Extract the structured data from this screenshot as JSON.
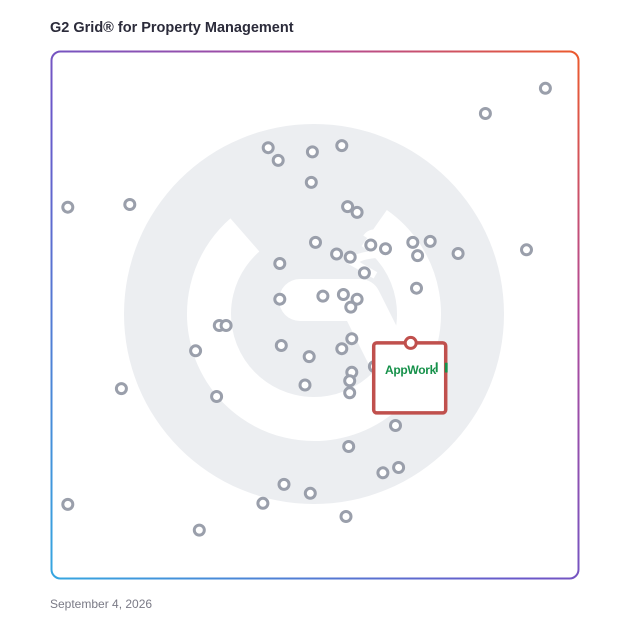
{
  "title": "G2 Grid® for Property Management",
  "date": "September 4, 2026",
  "colors": {
    "border_start": "#5b6bd6",
    "border_end": "#e8582e",
    "accent": "#c0504d",
    "dot": "#9a9fab",
    "logo": "#16914a"
  },
  "highlight_label": "AppWork",
  "chart_data": {
    "type": "scatter",
    "xlim": [
      0,
      100
    ],
    "ylim": [
      0,
      100
    ],
    "grid": "quadrants",
    "points": [
      {
        "x": 93.8,
        "y": 93.1
      },
      {
        "x": 82.4,
        "y": 88.3
      },
      {
        "x": 41.1,
        "y": 81.8
      },
      {
        "x": 55.1,
        "y": 82.2
      },
      {
        "x": 49.5,
        "y": 81.0
      },
      {
        "x": 43.0,
        "y": 79.4
      },
      {
        "x": 49.3,
        "y": 75.2
      },
      {
        "x": 3.0,
        "y": 70.5
      },
      {
        "x": 14.8,
        "y": 71.0
      },
      {
        "x": 56.2,
        "y": 70.6
      },
      {
        "x": 58.0,
        "y": 69.5
      },
      {
        "x": 50.1,
        "y": 63.8
      },
      {
        "x": 54.1,
        "y": 61.6
      },
      {
        "x": 56.7,
        "y": 61.0
      },
      {
        "x": 60.6,
        "y": 63.3
      },
      {
        "x": 63.4,
        "y": 62.6
      },
      {
        "x": 68.6,
        "y": 63.8
      },
      {
        "x": 71.9,
        "y": 64.0
      },
      {
        "x": 69.5,
        "y": 61.3
      },
      {
        "x": 77.2,
        "y": 61.7
      },
      {
        "x": 90.2,
        "y": 62.4
      },
      {
        "x": 43.3,
        "y": 59.8
      },
      {
        "x": 59.4,
        "y": 58.0
      },
      {
        "x": 69.3,
        "y": 55.1
      },
      {
        "x": 43.3,
        "y": 53.0
      },
      {
        "x": 51.5,
        "y": 53.6
      },
      {
        "x": 55.4,
        "y": 53.9
      },
      {
        "x": 58.0,
        "y": 53.0
      },
      {
        "x": 56.8,
        "y": 51.5
      },
      {
        "x": 31.8,
        "y": 48.0
      },
      {
        "x": 33.1,
        "y": 48.0
      },
      {
        "x": 43.6,
        "y": 44.2
      },
      {
        "x": 57.0,
        "y": 45.5
      },
      {
        "x": 55.1,
        "y": 43.6
      },
      {
        "x": 27.3,
        "y": 43.2
      },
      {
        "x": 48.9,
        "y": 42.1
      },
      {
        "x": 61.3,
        "y": 40.2
      },
      {
        "x": 57.0,
        "y": 39.1
      },
      {
        "x": 56.6,
        "y": 37.5
      },
      {
        "x": 13.2,
        "y": 36.0
      },
      {
        "x": 48.1,
        "y": 36.7
      },
      {
        "x": 31.3,
        "y": 34.5
      },
      {
        "x": 56.6,
        "y": 35.2
      },
      {
        "x": 65.3,
        "y": 29.0
      },
      {
        "x": 56.4,
        "y": 25.0
      },
      {
        "x": 65.9,
        "y": 21.0
      },
      {
        "x": 62.9,
        "y": 20.0
      },
      {
        "x": 44.1,
        "y": 17.8
      },
      {
        "x": 49.1,
        "y": 16.1
      },
      {
        "x": 40.1,
        "y": 14.2
      },
      {
        "x": 3.0,
        "y": 14.0
      },
      {
        "x": 55.9,
        "y": 11.7
      },
      {
        "x": 28.0,
        "y": 9.1
      }
    ],
    "highlight": {
      "name": "AppWork",
      "x": 68.2,
      "y": 44.7
    }
  }
}
